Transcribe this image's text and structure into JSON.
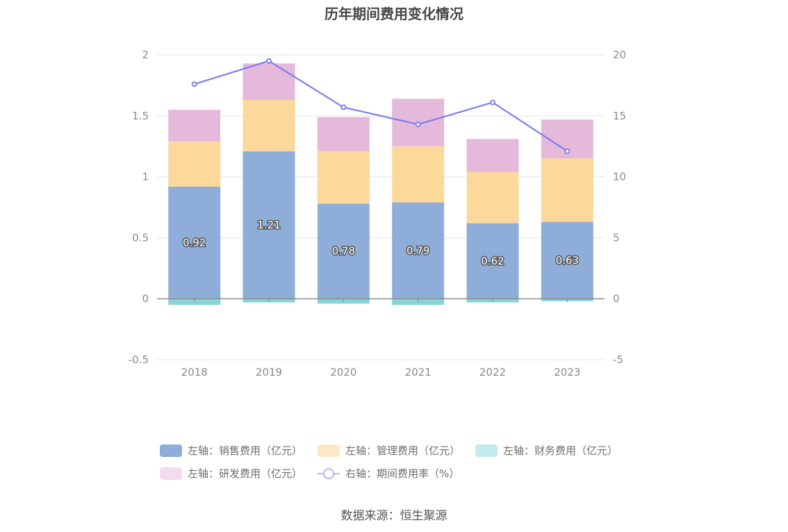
{
  "chart_data": {
    "type": "bar",
    "title": "历年期间费用变化情况",
    "categories": [
      "2018",
      "2019",
      "2020",
      "2021",
      "2022",
      "2023"
    ],
    "stacked": true,
    "series": [
      {
        "name": "左轴：销售费用（亿元）",
        "axis": "left",
        "type": "bar",
        "color": "#8eaed9",
        "values": [
          0.92,
          1.21,
          0.78,
          0.79,
          0.62,
          0.63
        ],
        "labels": [
          "0.92",
          "1.21",
          "0.78",
          "0.79",
          "0.62",
          "0.63"
        ]
      },
      {
        "name": "左轴：管理费用（亿元）",
        "axis": "left",
        "type": "bar",
        "color": "#fdd89b",
        "values": [
          0.37,
          0.42,
          0.43,
          0.46,
          0.42,
          0.52
        ]
      },
      {
        "name": "左轴：财务费用（亿元）",
        "axis": "left",
        "type": "bar",
        "color": "#86d4d6",
        "values": [
          -0.05,
          -0.03,
          -0.04,
          -0.05,
          -0.03,
          -0.02
        ]
      },
      {
        "name": "左轴：研发费用（亿元）",
        "axis": "left",
        "type": "bar",
        "color": "#e5b9da",
        "values": [
          0.26,
          0.3,
          0.28,
          0.39,
          0.27,
          0.32
        ]
      },
      {
        "name": "右轴：期间费用率（%）",
        "axis": "right",
        "type": "line",
        "color": "#7b7ff0",
        "values": [
          17.6,
          19.5,
          15.7,
          14.3,
          16.1,
          12.1
        ]
      }
    ],
    "left_axis": {
      "ylim": [
        -0.5,
        2
      ],
      "ticks": [
        "-0.5",
        "0",
        "0.5",
        "1",
        "1.5",
        "2"
      ]
    },
    "right_axis": {
      "ylim": [
        -5,
        20
      ],
      "ticks": [
        "-5",
        "0",
        "5",
        "10",
        "15",
        "20"
      ]
    },
    "grid": true,
    "legend_position": "bottom"
  },
  "source": "数据来源：恒生聚源"
}
